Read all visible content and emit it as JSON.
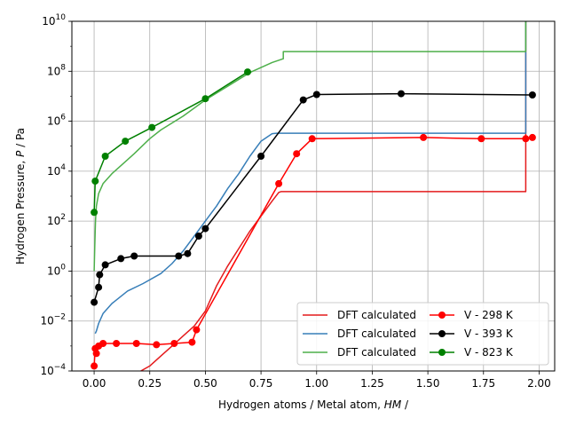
{
  "chart_data": {
    "type": "line",
    "title": "",
    "xlabel": "Hydrogen atoms / Metal atom, HM /",
    "xlabel_plain": "Hydrogen atoms / Metal atom, ",
    "xlabel_italic": "HM",
    "xlabel_tail": " /",
    "ylabel_plain": "Hydrogen Pressure, ",
    "ylabel_italic": "P",
    "ylabel_tail": " / Pa",
    "xlim": [
      -0.1,
      2.07
    ],
    "ylim_log10": [
      -4,
      10
    ],
    "yscale": "log",
    "grid": true,
    "legend_placement": "lower-right",
    "x_ticks": [
      {
        "value": 0.0,
        "label": "0.00"
      },
      {
        "value": 0.25,
        "label": "0.25"
      },
      {
        "value": 0.5,
        "label": "0.50"
      },
      {
        "value": 0.75,
        "label": "0.75"
      },
      {
        "value": 1.0,
        "label": "1.00"
      },
      {
        "value": 1.25,
        "label": "1.25"
      },
      {
        "value": 1.5,
        "label": "1.50"
      },
      {
        "value": 1.75,
        "label": "1.75"
      },
      {
        "value": 2.0,
        "label": "2.00"
      }
    ],
    "y_ticks": [
      {
        "exp": -4,
        "base": "10",
        "sup": "−4"
      },
      {
        "exp": -2,
        "base": "10",
        "sup": "−2"
      },
      {
        "exp": 0,
        "base": "10",
        "sup": "0"
      },
      {
        "exp": 2,
        "base": "10",
        "sup": "2"
      },
      {
        "exp": 4,
        "base": "10",
        "sup": "4"
      },
      {
        "exp": 6,
        "base": "10",
        "sup": "6"
      },
      {
        "exp": 8,
        "base": "10",
        "sup": "8"
      },
      {
        "exp": 10,
        "base": "10",
        "sup": "10"
      }
    ],
    "series": [
      {
        "name": "DFT calculated",
        "color": "#e41a1c",
        "style": "line",
        "points": [
          [
            0.21,
            -4.0
          ],
          [
            0.25,
            -3.8
          ],
          [
            0.3,
            -3.4
          ],
          [
            0.35,
            -3.0
          ],
          [
            0.4,
            -2.6
          ],
          [
            0.45,
            -2.2
          ],
          [
            0.5,
            -1.6
          ],
          [
            0.55,
            -0.6
          ],
          [
            0.6,
            0.2
          ],
          [
            0.65,
            0.9
          ],
          [
            0.7,
            1.6
          ],
          [
            0.75,
            2.2
          ],
          [
            0.8,
            2.8
          ],
          [
            0.83,
            3.15
          ],
          [
            0.84,
            3.18
          ],
          [
            1.94,
            3.18
          ],
          [
            1.94,
            10.0
          ]
        ]
      },
      {
        "name": "DFT calculated",
        "color": "#377eb8",
        "style": "line",
        "points": [
          [
            0.005,
            -2.5
          ],
          [
            0.01,
            -2.4
          ],
          [
            0.02,
            -2.1
          ],
          [
            0.04,
            -1.7
          ],
          [
            0.08,
            -1.3
          ],
          [
            0.15,
            -0.8
          ],
          [
            0.22,
            -0.5
          ],
          [
            0.3,
            -0.1
          ],
          [
            0.35,
            0.3
          ],
          [
            0.4,
            0.8
          ],
          [
            0.45,
            1.4
          ],
          [
            0.5,
            2.0
          ],
          [
            0.55,
            2.6
          ],
          [
            0.6,
            3.3
          ],
          [
            0.65,
            3.9
          ],
          [
            0.7,
            4.6
          ],
          [
            0.75,
            5.2
          ],
          [
            0.8,
            5.5
          ],
          [
            0.82,
            5.52
          ],
          [
            1.94,
            5.52
          ],
          [
            1.94,
            10.0
          ]
        ]
      },
      {
        "name": "DFT calculated",
        "color": "#4daf4a",
        "style": "line",
        "points": [
          [
            0.0,
            0.0
          ],
          [
            0.003,
            1.0
          ],
          [
            0.006,
            2.0
          ],
          [
            0.01,
            2.6
          ],
          [
            0.02,
            3.1
          ],
          [
            0.04,
            3.5
          ],
          [
            0.08,
            3.9
          ],
          [
            0.13,
            4.3
          ],
          [
            0.18,
            4.7
          ],
          [
            0.25,
            5.3
          ],
          [
            0.3,
            5.65
          ],
          [
            0.4,
            6.2
          ],
          [
            0.5,
            6.85
          ],
          [
            0.6,
            7.4
          ],
          [
            0.7,
            7.95
          ],
          [
            0.8,
            8.35
          ],
          [
            0.85,
            8.5
          ],
          [
            0.85,
            8.79
          ],
          [
            1.94,
            8.79
          ],
          [
            1.94,
            10.0
          ]
        ]
      },
      {
        "name": "V - 298 K",
        "color": "#ff0000",
        "style": "line-marker",
        "points": [
          [
            0.0,
            -3.8
          ],
          [
            0.005,
            -3.1
          ],
          [
            0.01,
            -3.3
          ],
          [
            0.02,
            -3.0
          ],
          [
            0.04,
            -2.9
          ],
          [
            0.1,
            -2.9
          ],
          [
            0.19,
            -2.9
          ],
          [
            0.28,
            -2.95
          ],
          [
            0.36,
            -2.9
          ],
          [
            0.44,
            -2.85
          ],
          [
            0.46,
            -2.35
          ],
          [
            0.83,
            3.5
          ],
          [
            0.91,
            4.7
          ],
          [
            0.98,
            5.3
          ],
          [
            1.48,
            5.35
          ],
          [
            1.74,
            5.3
          ],
          [
            1.94,
            5.3
          ],
          [
            1.97,
            5.35
          ]
        ]
      },
      {
        "name": "V - 393 K",
        "color": "#000000",
        "style": "line-marker",
        "points": [
          [
            0.0,
            -1.25
          ],
          [
            0.02,
            -0.65
          ],
          [
            0.025,
            -0.15
          ],
          [
            0.05,
            0.25
          ],
          [
            0.12,
            0.5
          ],
          [
            0.18,
            0.6
          ],
          [
            0.38,
            0.6
          ],
          [
            0.42,
            0.7
          ],
          [
            0.47,
            1.4
          ],
          [
            0.5,
            1.7
          ],
          [
            0.75,
            4.6
          ],
          [
            0.94,
            6.85
          ],
          [
            1.0,
            7.07
          ],
          [
            1.38,
            7.1
          ],
          [
            1.97,
            7.05
          ]
        ]
      },
      {
        "name": "V - 823 K",
        "color": "#008000",
        "style": "line-marker",
        "points": [
          [
            0.0,
            2.35
          ],
          [
            0.005,
            3.6
          ],
          [
            0.05,
            4.6
          ],
          [
            0.14,
            5.2
          ],
          [
            0.26,
            5.75
          ],
          [
            0.5,
            6.9
          ],
          [
            0.69,
            7.97
          ]
        ]
      }
    ],
    "legend": {
      "columns": [
        [
          {
            "label": "DFT calculated",
            "color": "#e41a1c",
            "marker": false
          },
          {
            "label": "DFT calculated",
            "color": "#377eb8",
            "marker": false
          },
          {
            "label": "DFT calculated",
            "color": "#4daf4a",
            "marker": false
          }
        ],
        [
          {
            "label": "V - 298 K",
            "color": "#ff0000",
            "marker": true
          },
          {
            "label": "V - 393 K",
            "color": "#000000",
            "marker": true
          },
          {
            "label": "V - 823 K",
            "color": "#008000",
            "marker": true
          }
        ]
      ]
    }
  }
}
